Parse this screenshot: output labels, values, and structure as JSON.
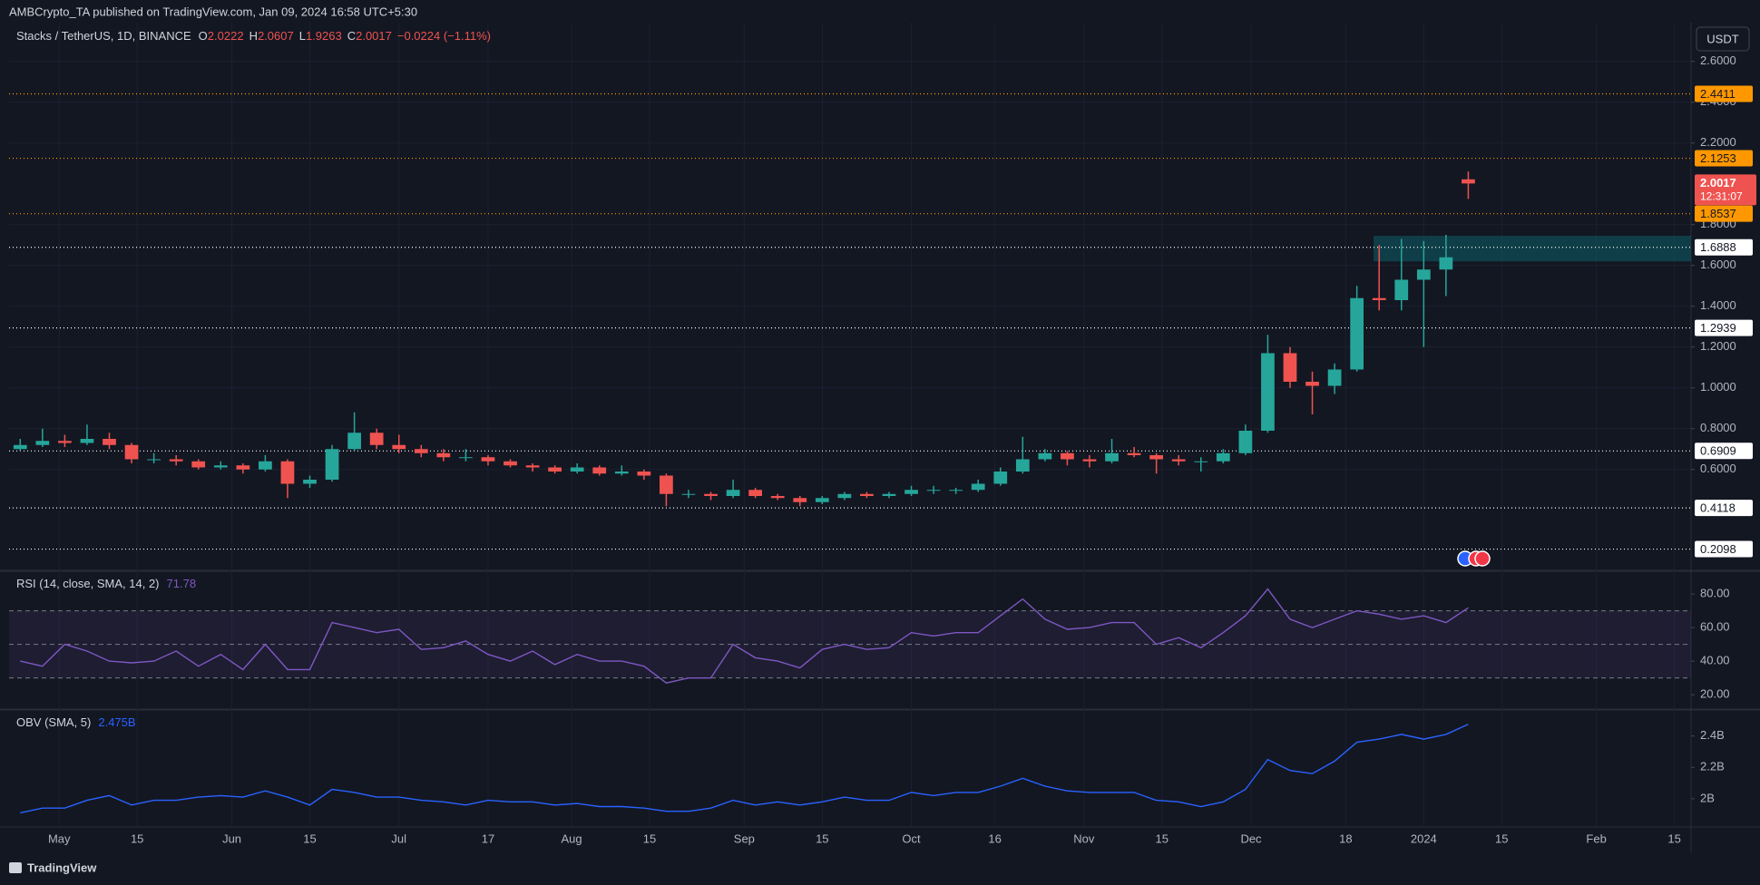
{
  "header": {
    "published": "AMBCrypto_TA published on TradingView.com, Jan 09, 2024 16:58 UTC+5:30"
  },
  "legend": {
    "symbol": "Stacks / TetherUS, 1D, BINANCE",
    "ohlc": [
      {
        "label": "O",
        "value": 2.0222
      },
      {
        "label": "H",
        "value": 2.0607
      },
      {
        "label": "L",
        "value": 1.9263
      },
      {
        "label": "C",
        "value": 2.0017
      }
    ],
    "change": "−0.0224 (−1.11%)"
  },
  "currency": "USDT",
  "countdown": "12:31:07",
  "footer": "TradingView",
  "chart_data": [
    {
      "type": "candlestick",
      "x": [
        -7,
        -3,
        1,
        5,
        9,
        13,
        17,
        21,
        25,
        29,
        33,
        37,
        41,
        45,
        49,
        53,
        57,
        61,
        65,
        69,
        73,
        77,
        81,
        85,
        89,
        93,
        97,
        101,
        105,
        109,
        113,
        117,
        121,
        125,
        129,
        133,
        137,
        141,
        145,
        149,
        153,
        157,
        161,
        165,
        169,
        173,
        177,
        181,
        185,
        189,
        193,
        197,
        201,
        205,
        209,
        213,
        217,
        221,
        225,
        229,
        233,
        237,
        241,
        245,
        249,
        253
      ],
      "candles": [
        [
          0.7,
          0.75,
          0.69,
          0.72
        ],
        [
          0.72,
          0.8,
          0.71,
          0.74
        ],
        [
          0.74,
          0.77,
          0.71,
          0.73
        ],
        [
          0.73,
          0.82,
          0.72,
          0.75
        ],
        [
          0.75,
          0.78,
          0.7,
          0.72
        ],
        [
          0.72,
          0.73,
          0.63,
          0.65
        ],
        [
          0.65,
          0.68,
          0.63,
          0.65
        ],
        [
          0.65,
          0.67,
          0.62,
          0.64
        ],
        [
          0.64,
          0.65,
          0.6,
          0.61
        ],
        [
          0.61,
          0.64,
          0.6,
          0.62
        ],
        [
          0.62,
          0.63,
          0.58,
          0.6
        ],
        [
          0.6,
          0.67,
          0.59,
          0.64
        ],
        [
          0.64,
          0.65,
          0.46,
          0.53
        ],
        [
          0.53,
          0.57,
          0.51,
          0.55
        ],
        [
          0.55,
          0.72,
          0.54,
          0.7
        ],
        [
          0.7,
          0.88,
          0.69,
          0.78
        ],
        [
          0.78,
          0.8,
          0.7,
          0.72
        ],
        [
          0.72,
          0.77,
          0.68,
          0.7
        ],
        [
          0.7,
          0.72,
          0.66,
          0.68
        ],
        [
          0.68,
          0.7,
          0.64,
          0.66
        ],
        [
          0.66,
          0.7,
          0.64,
          0.66
        ],
        [
          0.66,
          0.67,
          0.62,
          0.64
        ],
        [
          0.64,
          0.65,
          0.61,
          0.62
        ],
        [
          0.62,
          0.63,
          0.59,
          0.61
        ],
        [
          0.61,
          0.62,
          0.58,
          0.59
        ],
        [
          0.59,
          0.63,
          0.58,
          0.61
        ],
        [
          0.61,
          0.62,
          0.57,
          0.58
        ],
        [
          0.58,
          0.62,
          0.57,
          0.59
        ],
        [
          0.59,
          0.6,
          0.55,
          0.57
        ],
        [
          0.57,
          0.58,
          0.42,
          0.48
        ],
        [
          0.48,
          0.5,
          0.46,
          0.48
        ],
        [
          0.48,
          0.49,
          0.45,
          0.47
        ],
        [
          0.47,
          0.55,
          0.46,
          0.5
        ],
        [
          0.5,
          0.51,
          0.46,
          0.47
        ],
        [
          0.47,
          0.48,
          0.45,
          0.46
        ],
        [
          0.46,
          0.47,
          0.42,
          0.44
        ],
        [
          0.44,
          0.47,
          0.43,
          0.46
        ],
        [
          0.46,
          0.49,
          0.45,
          0.48
        ],
        [
          0.48,
          0.49,
          0.46,
          0.47
        ],
        [
          0.47,
          0.49,
          0.46,
          0.48
        ],
        [
          0.48,
          0.52,
          0.47,
          0.5
        ],
        [
          0.5,
          0.52,
          0.48,
          0.5
        ],
        [
          0.5,
          0.51,
          0.48,
          0.5
        ],
        [
          0.5,
          0.55,
          0.49,
          0.53
        ],
        [
          0.53,
          0.61,
          0.52,
          0.59
        ],
        [
          0.59,
          0.76,
          0.58,
          0.65
        ],
        [
          0.65,
          0.7,
          0.64,
          0.68
        ],
        [
          0.68,
          0.69,
          0.62,
          0.65
        ],
        [
          0.65,
          0.67,
          0.61,
          0.64
        ],
        [
          0.64,
          0.75,
          0.63,
          0.68
        ],
        [
          0.68,
          0.71,
          0.66,
          0.67
        ],
        [
          0.67,
          0.68,
          0.58,
          0.65
        ],
        [
          0.65,
          0.67,
          0.62,
          0.64
        ],
        [
          0.64,
          0.66,
          0.59,
          0.64
        ],
        [
          0.64,
          0.7,
          0.63,
          0.68
        ],
        [
          0.68,
          0.82,
          0.67,
          0.79
        ],
        [
          0.79,
          1.26,
          0.78,
          1.17
        ],
        [
          1.17,
          1.2,
          1.0,
          1.03
        ],
        [
          1.03,
          1.08,
          0.87,
          1.01
        ],
        [
          1.01,
          1.12,
          0.97,
          1.09
        ],
        [
          1.09,
          1.5,
          1.08,
          1.44
        ],
        [
          1.44,
          1.7,
          1.38,
          1.43
        ],
        [
          1.43,
          1.73,
          1.38,
          1.53
        ],
        [
          1.53,
          1.72,
          1.2,
          1.58
        ],
        [
          1.58,
          1.75,
          1.45,
          1.64
        ],
        [
          2.0222,
          2.0607,
          1.9263,
          2.0017
        ]
      ],
      "up_color": "#26a69a",
      "down_color": "#ef5350",
      "xlim": [
        -9,
        293
      ],
      "xticks": [
        {
          "value": 0,
          "label": "May"
        },
        {
          "value": 14,
          "label": "15"
        },
        {
          "value": 31,
          "label": "Jun"
        },
        {
          "value": 45,
          "label": "15"
        },
        {
          "value": 61,
          "label": "Jul"
        },
        {
          "value": 77,
          "label": "17"
        },
        {
          "value": 92,
          "label": "Aug"
        },
        {
          "value": 106,
          "label": "15"
        },
        {
          "value": 123,
          "label": "Sep"
        },
        {
          "value": 137,
          "label": "15"
        },
        {
          "value": 153,
          "label": "Oct"
        },
        {
          "value": 168,
          "label": "16"
        },
        {
          "value": 184,
          "label": "Nov"
        },
        {
          "value": 198,
          "label": "15"
        },
        {
          "value": 214,
          "label": "Dec"
        },
        {
          "value": 231,
          "label": "18"
        },
        {
          "value": 245,
          "label": "2024"
        },
        {
          "value": 259,
          "label": "15"
        },
        {
          "value": 276,
          "label": "Feb"
        },
        {
          "value": 290,
          "label": "15"
        }
      ],
      "ylim": [
        0.11,
        2.79
      ],
      "yticks": [
        {
          "value": 2.6,
          "label": "2.6000"
        },
        {
          "value": 2.4,
          "label": "2.4000"
        },
        {
          "value": 2.2,
          "label": "2.2000"
        },
        {
          "value": 1.8,
          "label": "1.8000"
        },
        {
          "value": 1.6,
          "label": "1.6000"
        },
        {
          "value": 1.4,
          "label": "1.4000"
        },
        {
          "value": 1.2,
          "label": "1.2000"
        },
        {
          "value": 1.0,
          "label": "1.0000"
        },
        {
          "value": 0.8,
          "label": "0.8000"
        },
        {
          "value": 0.6,
          "label": "0.6000"
        }
      ],
      "grid": true,
      "levels": [
        {
          "value": 2.4411,
          "color": "#ff9800"
        },
        {
          "value": 2.1253,
          "color": "#ff9800"
        },
        {
          "value": 1.8537,
          "color": "#ff9800"
        },
        {
          "value": 1.6888,
          "color": "#ffffff"
        },
        {
          "value": 1.2939,
          "color": "#ffffff"
        },
        {
          "value": 0.6909,
          "color": "#ffffff"
        },
        {
          "value": 0.4118,
          "color": "#ffffff"
        },
        {
          "value": 0.2098,
          "color": "#ffffff"
        }
      ],
      "last_price": 2.0017,
      "zone": [
        1.62,
        1.745
      ],
      "zone_start": 236
    },
    {
      "type": "line",
      "title": "RSI (14, close, SMA, 14, 2)",
      "last_value": 71.78,
      "color": "#7e57c2",
      "x": [
        -7,
        -3,
        1,
        5,
        9,
        13,
        17,
        21,
        25,
        29,
        33,
        37,
        41,
        45,
        49,
        53,
        57,
        61,
        65,
        69,
        73,
        77,
        81,
        85,
        89,
        93,
        97,
        101,
        105,
        109,
        113,
        117,
        121,
        125,
        129,
        133,
        137,
        141,
        145,
        149,
        153,
        157,
        161,
        165,
        169,
        173,
        177,
        181,
        185,
        189,
        193,
        197,
        201,
        205,
        209,
        213,
        217,
        221,
        225,
        229,
        233,
        237,
        241,
        245,
        249,
        253
      ],
      "values": [
        40,
        37,
        50,
        46,
        40,
        39,
        40,
        46,
        37,
        44,
        35,
        50,
        35,
        35,
        63,
        60,
        57,
        59,
        47,
        48,
        52,
        44,
        40,
        46,
        38,
        44,
        40,
        40,
        37,
        27,
        30,
        30,
        50,
        42,
        40,
        36,
        47,
        50,
        47,
        48,
        57,
        55,
        57,
        57,
        67,
        77,
        65,
        59,
        60,
        63,
        63,
        50,
        54,
        48,
        57,
        67,
        83,
        65,
        60,
        65,
        70,
        68,
        65,
        67,
        63,
        71.78
      ],
      "ylim": [
        12,
        93
      ],
      "yticks": [
        {
          "value": 80,
          "label": "80.00"
        },
        {
          "value": 60,
          "label": "60.00"
        },
        {
          "value": 40,
          "label": "40.00"
        },
        {
          "value": 20,
          "label": "20.00"
        }
      ],
      "bands": [
        70,
        50,
        30
      ]
    },
    {
      "type": "line",
      "title": "OBV (SMA, 5)",
      "last_value": 2.475,
      "last_value_label": "2.475B",
      "color": "#2962ff",
      "x": [
        -7,
        -3,
        1,
        5,
        9,
        13,
        17,
        21,
        25,
        29,
        33,
        37,
        41,
        45,
        49,
        53,
        57,
        61,
        65,
        69,
        73,
        77,
        81,
        85,
        89,
        93,
        97,
        101,
        105,
        109,
        113,
        117,
        121,
        125,
        129,
        133,
        137,
        141,
        145,
        149,
        153,
        157,
        161,
        165,
        169,
        173,
        177,
        181,
        185,
        189,
        193,
        197,
        201,
        205,
        209,
        213,
        217,
        221,
        225,
        229,
        233,
        237,
        241,
        245,
        249,
        253
      ],
      "values": [
        1.91,
        1.94,
        1.94,
        1.99,
        2.02,
        1.96,
        1.99,
        1.99,
        2.01,
        2.02,
        2.01,
        2.05,
        2.01,
        1.96,
        2.06,
        2.04,
        2.01,
        2.01,
        1.99,
        1.98,
        1.96,
        1.99,
        1.98,
        1.98,
        1.96,
        1.97,
        1.95,
        1.95,
        1.94,
        1.92,
        1.92,
        1.94,
        1.99,
        1.96,
        1.98,
        1.96,
        1.98,
        2.01,
        1.99,
        1.99,
        2.04,
        2.02,
        2.04,
        2.04,
        2.08,
        2.13,
        2.08,
        2.05,
        2.04,
        2.04,
        2.04,
        1.99,
        1.98,
        1.95,
        1.98,
        2.06,
        2.25,
        2.18,
        2.16,
        2.24,
        2.36,
        2.38,
        2.41,
        2.38,
        2.41,
        2.475
      ],
      "ylim": [
        1.82,
        2.56
      ],
      "yticks": [
        {
          "value": 2.4,
          "label": "2.4B"
        },
        {
          "value": 2.2,
          "label": "2.2B"
        },
        {
          "value": 2,
          "label": "2B"
        }
      ]
    }
  ]
}
